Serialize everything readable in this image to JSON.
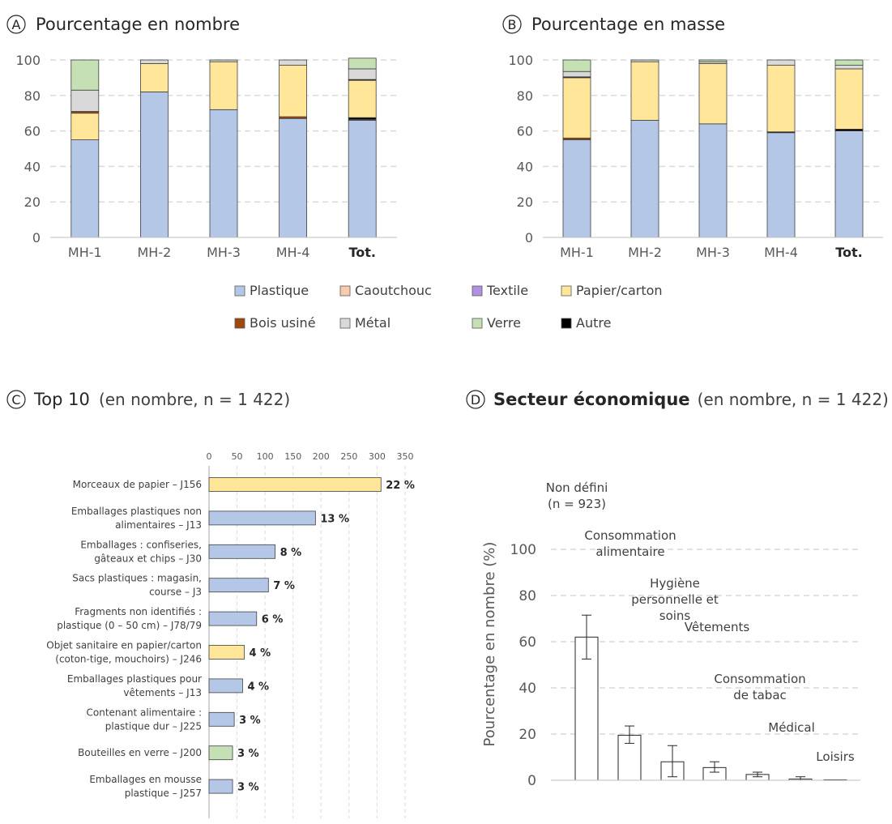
{
  "colors": {
    "Plastique": "#b4c7e7",
    "Caoutchouc": "#f8cbad",
    "Textile": "#b28fe0",
    "Papier/carton": "#ffe699",
    "Bois usiné": "#9e480e",
    "Métal": "#d9d9d9",
    "Verre": "#c5e0b4",
    "Autre": "#000000",
    "grid": "#d9d9d9",
    "axis": "#7f7f7f"
  },
  "chart_data": [
    {
      "id": "A",
      "panel_label": "A",
      "type": "bar",
      "stacked": true,
      "title": "Pourcentage en nombre",
      "categories": [
        "MH-1",
        "MH-2",
        "MH-3",
        "MH-4",
        "Tot."
      ],
      "ylim": [
        0,
        100
      ],
      "yticks": [
        "0",
        "20",
        "40",
        "60",
        "80",
        "100"
      ],
      "grid": true,
      "series": [
        {
          "name": "Plastique",
          "values": [
            55,
            82,
            72,
            67,
            66
          ]
        },
        {
          "name": "Caoutchouc",
          "values": [
            0,
            0,
            0,
            0,
            0
          ]
        },
        {
          "name": "Textile",
          "values": [
            0,
            0,
            0,
            0,
            0
          ]
        },
        {
          "name": "Bois usiné",
          "values": [
            0,
            0,
            0,
            1,
            0.5
          ]
        },
        {
          "name": "Autre",
          "values": [
            0,
            0,
            0,
            0,
            1
          ]
        },
        {
          "name": "Papier/carton",
          "values": [
            15,
            16,
            27,
            29,
            21
          ]
        },
        {
          "name": "Bois usiné",
          "values": [
            1,
            0,
            0,
            0,
            0
          ]
        },
        {
          "name": "Autre",
          "values": [
            0,
            0,
            0,
            0,
            0.5
          ]
        },
        {
          "name": "Métal",
          "values": [
            12,
            2,
            1,
            3,
            6
          ]
        },
        {
          "name": "Verre",
          "values": [
            17,
            0,
            0,
            0,
            6
          ]
        }
      ]
    },
    {
      "id": "B",
      "panel_label": "B",
      "type": "bar",
      "stacked": true,
      "title": "Pourcentage en masse",
      "categories": [
        "MH-1",
        "MH-2",
        "MH-3",
        "MH-4",
        "Tot."
      ],
      "ylim": [
        0,
        100
      ],
      "yticks": [
        "0",
        "20",
        "40",
        "60",
        "80",
        "100"
      ],
      "grid": true,
      "series": [
        {
          "name": "Plastique",
          "values": [
            55,
            66,
            64,
            59,
            60
          ]
        },
        {
          "name": "Bois usiné",
          "values": [
            1,
            0,
            0,
            0,
            0
          ]
        },
        {
          "name": "Autre",
          "values": [
            0,
            0,
            0,
            0.5,
            1
          ]
        },
        {
          "name": "Papier/carton",
          "values": [
            34,
            33,
            34,
            37.5,
            34
          ]
        },
        {
          "name": "Autre",
          "values": [
            0.5,
            0,
            0,
            0,
            0
          ]
        },
        {
          "name": "Métal",
          "values": [
            3,
            1,
            1,
            3,
            2
          ]
        },
        {
          "name": "Verre",
          "values": [
            6.5,
            0,
            1,
            0,
            3
          ]
        }
      ]
    },
    {
      "id": "C",
      "panel_label": "C",
      "type": "bar",
      "orientation": "horizontal",
      "title": "Top 10",
      "subtitle": "(en nombre, n = 1 422)",
      "xlim": [
        0,
        350
      ],
      "xticks": [
        "0",
        "50",
        "100",
        "150",
        "200",
        "250",
        "300",
        "350"
      ],
      "grid": true,
      "categories": [
        [
          "Morceaux de papier – J156"
        ],
        [
          "Emballages plastiques non",
          "alimentaires – J13"
        ],
        [
          "Emballages : confiseries,",
          "gâteaux et chips – J30"
        ],
        [
          "Sacs plastiques : magasin,",
          "course – J3"
        ],
        [
          "Fragments non identifiés :",
          "plastique (0 – 50 cm) – J78/79"
        ],
        [
          "Objet sanitaire en papier/carton",
          "(coton-tige, mouchoirs) – J246"
        ],
        [
          "Emballages plastiques pour",
          "vêtements – J13"
        ],
        [
          "Contenant alimentaire :",
          "plastique dur – J225"
        ],
        [
          "Bouteilles en verre – J200"
        ],
        [
          "Emballages en mousse",
          "plastique – J257"
        ]
      ],
      "values": [
        307,
        190,
        118,
        106,
        85,
        63,
        60,
        45,
        42,
        42
      ],
      "materials": [
        "Papier/carton",
        "Plastique",
        "Plastique",
        "Plastique",
        "Plastique",
        "Papier/carton",
        "Plastique",
        "Plastique",
        "Verre",
        "Plastique"
      ],
      "data_labels": [
        "22 %",
        "13 %",
        "8 %",
        "7 %",
        "6 %",
        "4 %",
        "4 %",
        "3 %",
        "3 %",
        "3 %"
      ]
    },
    {
      "id": "D",
      "panel_label": "D",
      "type": "bar",
      "title": "Secteur économique",
      "subtitle": "(en nombre, n = 1 422)",
      "ylabel": "Pourcentage en nombre (%)",
      "ylim": [
        0,
        100
      ],
      "yticks": [
        "0",
        "20",
        "40",
        "60",
        "80",
        "100"
      ],
      "grid": true,
      "categories": [
        [
          "Non défini",
          "(n = 923)"
        ],
        [
          "Consommation",
          "alimentaire"
        ],
        [
          "Hygiène",
          "personnelle et",
          "soins"
        ],
        [
          "Vêtements"
        ],
        [
          "Consommation",
          "de tabac"
        ],
        [
          "Médical"
        ],
        [
          "Loisirs"
        ]
      ],
      "values": [
        62,
        19.5,
        8,
        5.5,
        2.5,
        0.5,
        0.2
      ],
      "error_low": [
        52.5,
        16,
        1.5,
        3.5,
        1.5,
        0,
        0
      ],
      "error_high": [
        71.5,
        23.5,
        15,
        8,
        3.5,
        1.5,
        0
      ]
    }
  ],
  "legend": {
    "row1": [
      "Plastique",
      "Caoutchouc",
      "Textile",
      "Papier/carton"
    ],
    "row2": [
      "Bois usiné",
      "Métal",
      "Verre",
      "Autre"
    ]
  }
}
